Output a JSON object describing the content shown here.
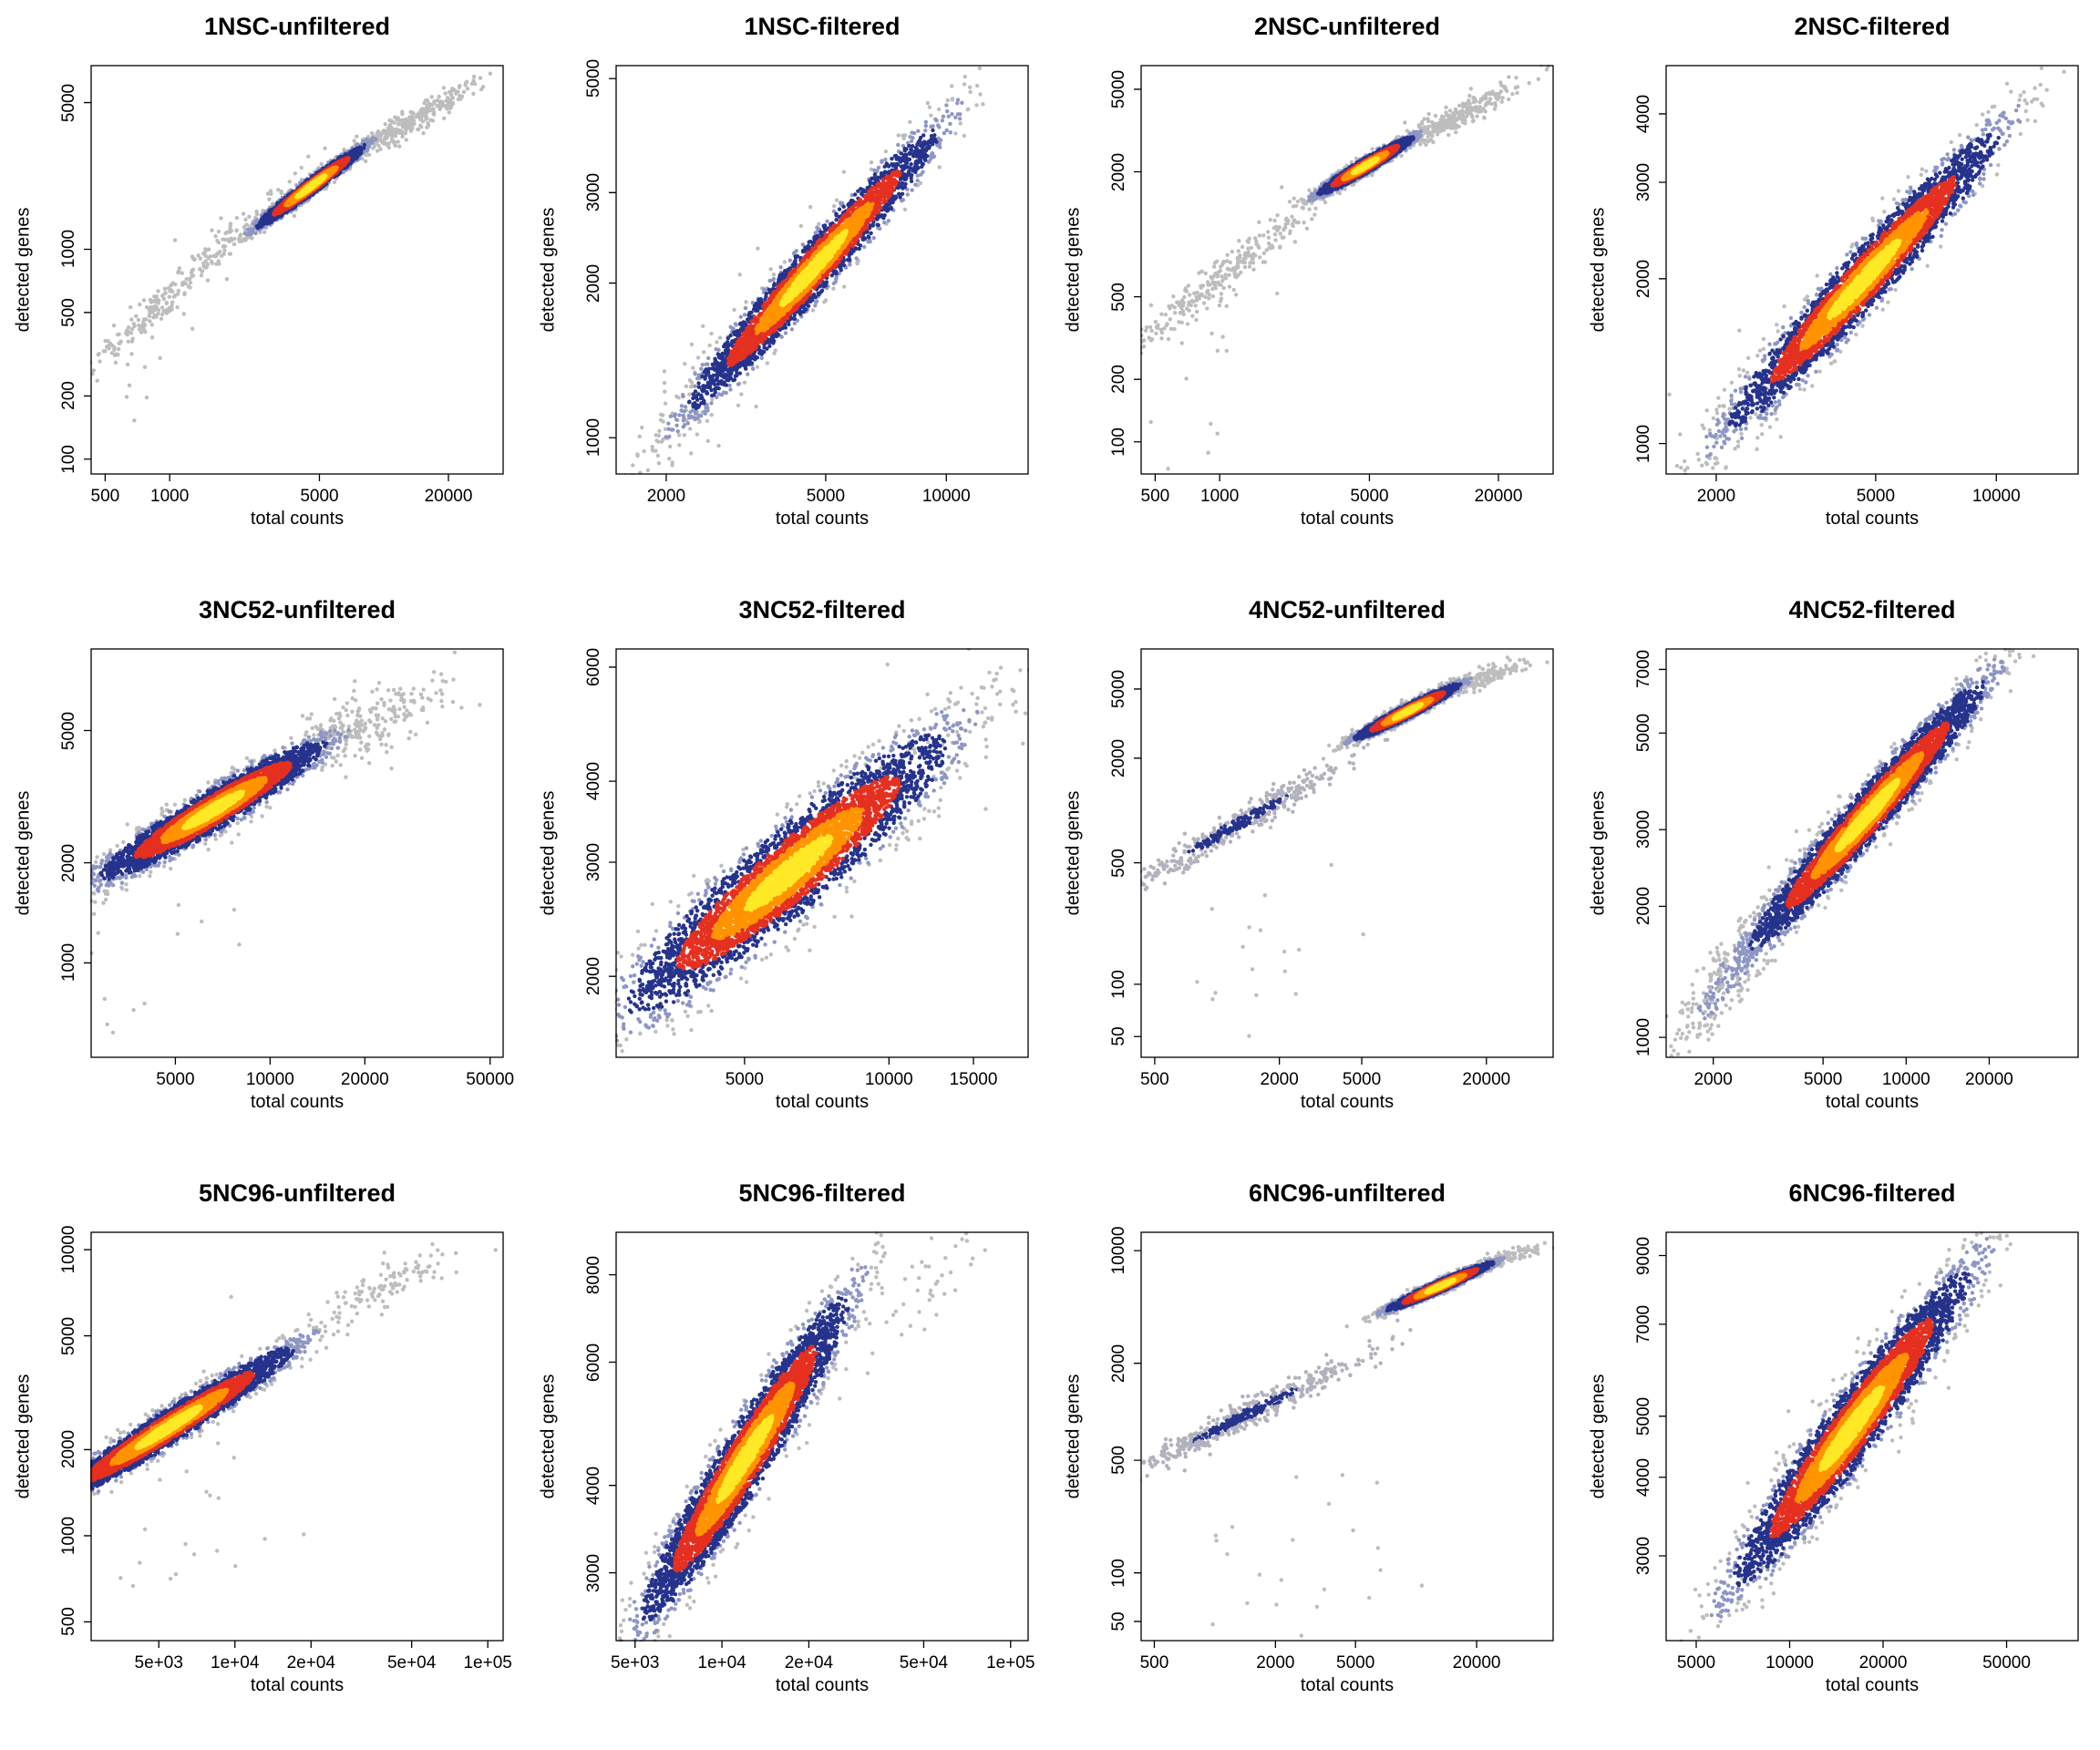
{
  "figure": {
    "rows": 3,
    "cols": 4,
    "background": "#FFFFFF"
  },
  "palette": {
    "yellow": "#FFE926",
    "orange": "#FF9400",
    "red": "#E53020",
    "navy": "#26338C",
    "slate": "#8E96C4",
    "gray": "#BDBDBD",
    "tail_gray": "#B2B2BE",
    "axis": "#000000"
  },
  "chart_data": [
    {
      "type": "scatter",
      "title": "1NSC-unfiltered",
      "xlabel": "total counts",
      "ylabel": "detected genes",
      "xscale": "log",
      "yscale": "log",
      "xlim": [
        430,
        36000
      ],
      "ylim": [
        85,
        7500
      ],
      "seed": 11,
      "xtick_values": [
        500,
        1000,
        5000,
        20000
      ],
      "xtick_labels": [
        "500",
        "1000",
        "5000",
        "20000"
      ],
      "ytick_values": [
        100,
        200,
        500,
        1000,
        5000
      ],
      "ytick_labels": [
        "100",
        "200",
        "500",
        "1000",
        "5000"
      ],
      "clouds": [
        {
          "n": 260,
          "cx": 3.05,
          "cy": 2.83,
          "sx": 0.24,
          "slope": 0.95,
          "sy": 0.05,
          "palette": "gray"
        },
        {
          "n": 300,
          "cx": 4.13,
          "cy": 3.61,
          "sx": 0.16,
          "slope": 0.58,
          "sy": 0.03,
          "palette": "gray"
        },
        {
          "n": 14,
          "cx": 2.85,
          "cy": 2.35,
          "sx": 0.12,
          "slope": 1.3,
          "sy": 0.22,
          "palette": "gray"
        },
        {
          "n": 3200,
          "cx": 3.66,
          "cy": 3.3,
          "sx": 0.115,
          "slope": 0.75,
          "sy": 0.02,
          "palette": "density"
        }
      ]
    },
    {
      "type": "scatter",
      "title": "1NSC-filtered",
      "xlabel": "total counts",
      "ylabel": "detected genes",
      "xscale": "log",
      "yscale": "log",
      "xlim": [
        1500,
        16000
      ],
      "ylim": [
        850,
        5300
      ],
      "seed": 22,
      "xtick_values": [
        2000,
        5000,
        10000
      ],
      "xtick_labels": [
        "2000",
        "5000",
        "10000"
      ],
      "ytick_values": [
        1000,
        2000,
        3000,
        5000
      ],
      "ytick_labels": [
        "1000",
        "2000",
        "3000",
        "5000"
      ],
      "clouds": [
        {
          "n": 70,
          "cx": 3.36,
          "cy": 3.07,
          "sx": 0.12,
          "slope": 0.95,
          "sy": 0.07,
          "palette": "gray"
        },
        {
          "n": 4200,
          "cx": 3.67,
          "cy": 3.33,
          "sx": 0.14,
          "slope": 0.85,
          "sy": 0.028,
          "palette": "density"
        }
      ]
    },
    {
      "type": "scatter",
      "title": "2NSC-unfiltered",
      "xlabel": "total counts",
      "ylabel": "detected genes",
      "xscale": "log",
      "yscale": "log",
      "xlim": [
        430,
        36000
      ],
      "ylim": [
        70,
        6500
      ],
      "seed": 33,
      "xtick_values": [
        500,
        1000,
        5000,
        20000
      ],
      "xtick_labels": [
        "500",
        "1000",
        "5000",
        "20000"
      ],
      "ytick_values": [
        100,
        200,
        500,
        2000,
        5000
      ],
      "ytick_labels": [
        "100",
        "200",
        "500",
        "2000",
        "5000"
      ],
      "clouds": [
        {
          "n": 280,
          "cx": 3.02,
          "cy": 2.8,
          "sx": 0.24,
          "slope": 0.82,
          "sy": 0.05,
          "palette": "gray"
        },
        {
          "n": 280,
          "cx": 4.1,
          "cy": 3.56,
          "sx": 0.15,
          "slope": 0.52,
          "sy": 0.03,
          "palette": "gray"
        },
        {
          "n": 16,
          "cx": 2.95,
          "cy": 2.4,
          "sx": 0.17,
          "slope": 0.9,
          "sy": 0.3,
          "palette": "gray"
        },
        {
          "n": 3000,
          "cx": 3.68,
          "cy": 3.33,
          "sx": 0.1,
          "slope": 0.6,
          "sy": 0.018,
          "palette": "density"
        }
      ]
    },
    {
      "type": "scatter",
      "title": "2NSC-filtered",
      "xlabel": "total counts",
      "ylabel": "detected genes",
      "xscale": "log",
      "yscale": "log",
      "xlim": [
        1500,
        16000
      ],
      "ylim": [
        880,
        4900
      ],
      "seed": 44,
      "xtick_values": [
        2000,
        5000,
        10000
      ],
      "xtick_labels": [
        "2000",
        "5000",
        "10000"
      ],
      "ytick_values": [
        1000,
        2000,
        3000,
        4000
      ],
      "ytick_labels": [
        "1000",
        "2000",
        "3000",
        "4000"
      ],
      "clouds": [
        {
          "n": 70,
          "cx": 3.35,
          "cy": 3.05,
          "sx": 0.12,
          "slope": 0.85,
          "sy": 0.06,
          "palette": "gray"
        },
        {
          "n": 4500,
          "cx": 3.67,
          "cy": 3.3,
          "sx": 0.15,
          "slope": 0.78,
          "sy": 0.03,
          "palette": "density"
        }
      ]
    },
    {
      "type": "scatter",
      "title": "3NC52-unfiltered",
      "xlabel": "total counts",
      "ylabel": "detected genes",
      "xscale": "log",
      "yscale": "log",
      "xlim": [
        2700,
        55000
      ],
      "ylim": [
        520,
        8800
      ],
      "seed": 55,
      "xtick_values": [
        5000,
        10000,
        20000,
        50000
      ],
      "xtick_labels": [
        "5000",
        "10000",
        "20000",
        "50000"
      ],
      "ytick_values": [
        1000,
        2000,
        5000
      ],
      "ytick_labels": [
        "1000",
        "2000",
        "5000"
      ],
      "clouds": [
        {
          "n": 220,
          "cx": 4.3,
          "cy": 3.71,
          "sx": 0.13,
          "slope": 0.38,
          "sy": 0.05,
          "palette": "gray"
        },
        {
          "n": 22,
          "cx": 3.62,
          "cy": 3.05,
          "sx": 0.18,
          "slope": 0.5,
          "sy": 0.22,
          "palette": "gray"
        },
        {
          "n": 4500,
          "cx": 3.82,
          "cy": 3.46,
          "sx": 0.16,
          "slope": 0.55,
          "sy": 0.03,
          "palette": "density"
        }
      ]
    },
    {
      "type": "scatter",
      "title": "3NC52-filtered",
      "xlabel": "total counts",
      "ylabel": "detected genes",
      "xscale": "log",
      "yscale": "log",
      "xlim": [
        2700,
        19500
      ],
      "ylim": [
        1500,
        6400
      ],
      "seed": 66,
      "xtick_values": [
        5000,
        10000,
        15000
      ],
      "xtick_labels": [
        "5000",
        "10000",
        "15000"
      ],
      "ytick_values": [
        2000,
        3000,
        4000,
        6000
      ],
      "ytick_labels": [
        "2000",
        "3000",
        "4000",
        "6000"
      ],
      "clouds": [
        {
          "n": 90,
          "cx": 4.08,
          "cy": 3.64,
          "sx": 0.1,
          "slope": 0.5,
          "sy": 0.06,
          "palette": "gray"
        },
        {
          "n": 5000,
          "cx": 3.79,
          "cy": 3.46,
          "sx": 0.15,
          "slope": 0.6,
          "sy": 0.035,
          "palette": "density"
        }
      ]
    },
    {
      "type": "scatter",
      "title": "4NC52-unfiltered",
      "xlabel": "total counts",
      "ylabel": "detected genes",
      "xscale": "log",
      "yscale": "log",
      "xlim": [
        430,
        42000
      ],
      "ylim": [
        38,
        8500
      ],
      "seed": 77,
      "xtick_values": [
        500,
        2000,
        5000,
        20000
      ],
      "xtick_labels": [
        "500",
        "2000",
        "5000",
        "20000"
      ],
      "ytick_values": [
        50,
        100,
        500,
        2000,
        5000
      ],
      "ytick_labels": [
        "50",
        "100",
        "500",
        "2000",
        "5000"
      ],
      "clouds": [
        {
          "n": 420,
          "cx": 3.1,
          "cy": 2.92,
          "sx": 0.27,
          "slope": 0.68,
          "sy": 0.04,
          "palette": "bluegray"
        },
        {
          "n": 130,
          "cx": 4.3,
          "cy": 3.77,
          "sx": 0.11,
          "slope": 0.42,
          "sy": 0.03,
          "palette": "gray"
        },
        {
          "n": 20,
          "cx": 3.2,
          "cy": 2.05,
          "sx": 0.28,
          "slope": 0.35,
          "sy": 0.35,
          "palette": "gray"
        },
        {
          "n": 3200,
          "cx": 3.92,
          "cy": 3.57,
          "sx": 0.115,
          "slope": 0.6,
          "sy": 0.02,
          "palette": "density"
        }
      ]
    },
    {
      "type": "scatter",
      "title": "4NC52-filtered",
      "xlabel": "total counts",
      "ylabel": "detected genes",
      "xscale": "log",
      "yscale": "log",
      "xlim": [
        1350,
        42000
      ],
      "ylim": [
        900,
        7800
      ],
      "seed": 88,
      "xtick_values": [
        2000,
        5000,
        10000,
        20000
      ],
      "xtick_labels": [
        "2000",
        "5000",
        "10000",
        "20000"
      ],
      "ytick_values": [
        1000,
        2000,
        3000,
        5000,
        7000
      ],
      "ytick_labels": [
        "1000",
        "2000",
        "3000",
        "5000",
        "7000"
      ],
      "clouds": [
        {
          "n": 320,
          "cx": 3.38,
          "cy": 3.16,
          "sx": 0.14,
          "slope": 0.78,
          "sy": 0.05,
          "palette": "grayblue"
        },
        {
          "n": 5000,
          "cx": 3.86,
          "cy": 3.51,
          "sx": 0.19,
          "slope": 0.7,
          "sy": 0.032,
          "palette": "density"
        }
      ]
    },
    {
      "type": "scatter",
      "title": "5NC96-unfiltered",
      "xlabel": "total counts",
      "ylabel": "detected genes",
      "xscale": "log",
      "yscale": "log",
      "xlim": [
        2700,
        115000
      ],
      "ylim": [
        430,
        11500
      ],
      "seed": 99,
      "xtick_values": [
        5000,
        10000,
        20000,
        50000,
        100000
      ],
      "xtick_labels": [
        "5e+03",
        "1e+04",
        "2e+04",
        "5e+04",
        "1e+05"
      ],
      "ytick_values": [
        500,
        1000,
        2000,
        5000,
        10000
      ],
      "ytick_labels": [
        "500",
        "1000",
        "2000",
        "5000",
        "10000"
      ],
      "clouds": [
        {
          "n": 100,
          "cx": 4.62,
          "cy": 3.88,
          "sx": 0.14,
          "slope": 0.38,
          "sy": 0.035,
          "palette": "gray"
        },
        {
          "n": 28,
          "cx": 3.7,
          "cy": 3.0,
          "sx": 0.25,
          "slope": 0.4,
          "sy": 0.22,
          "palette": "gray"
        },
        {
          "n": 5000,
          "cx": 3.74,
          "cy": 3.38,
          "sx": 0.22,
          "slope": 0.55,
          "sy": 0.03,
          "palette": "density"
        }
      ]
    },
    {
      "type": "scatter",
      "title": "5NC96-filtered",
      "xlabel": "total counts",
      "ylabel": "detected genes",
      "xscale": "log",
      "yscale": "log",
      "xlim": [
        4300,
        115000
      ],
      "ylim": [
        2400,
        9200
      ],
      "seed": 110,
      "xtick_values": [
        5000,
        10000,
        20000,
        50000,
        100000
      ],
      "xtick_labels": [
        "5e+03",
        "1e+04",
        "2e+04",
        "5e+04",
        "1e+05"
      ],
      "ytick_values": [
        3000,
        4000,
        6000,
        8000
      ],
      "ytick_labels": [
        "3000",
        "4000",
        "6000",
        "8000"
      ],
      "clouds": [
        {
          "n": 45,
          "cx": 4.72,
          "cy": 3.9,
          "sx": 0.13,
          "slope": 0.35,
          "sy": 0.035,
          "palette": "gray"
        },
        {
          "n": 5000,
          "cx": 4.08,
          "cy": 3.64,
          "sx": 0.16,
          "slope": 0.62,
          "sy": 0.03,
          "palette": "density"
        }
      ]
    },
    {
      "type": "scatter",
      "title": "6NC96-unfiltered",
      "xlabel": "total counts",
      "ylabel": "detected genes",
      "xscale": "log",
      "yscale": "log",
      "xlim": [
        430,
        48000
      ],
      "ylim": [
        38,
        13000
      ],
      "seed": 121,
      "xtick_values": [
        500,
        2000,
        5000,
        20000
      ],
      "xtick_labels": [
        "500",
        "2000",
        "5000",
        "20000"
      ],
      "ytick_values": [
        50,
        100,
        500,
        2000,
        10000
      ],
      "ytick_labels": [
        "50",
        "100",
        "500",
        "2000",
        "10000"
      ],
      "clouds": [
        {
          "n": 500,
          "cx": 3.15,
          "cy": 2.98,
          "sx": 0.29,
          "slope": 0.62,
          "sy": 0.04,
          "palette": "bluegray"
        },
        {
          "n": 90,
          "cx": 4.47,
          "cy": 3.96,
          "sx": 0.09,
          "slope": 0.38,
          "sy": 0.02,
          "palette": "gray"
        },
        {
          "n": 22,
          "cx": 3.3,
          "cy": 2.15,
          "sx": 0.28,
          "slope": 0.45,
          "sy": 0.38,
          "palette": "gray"
        },
        {
          "n": 3500,
          "cx": 4.12,
          "cy": 3.78,
          "sx": 0.12,
          "slope": 0.55,
          "sy": 0.018,
          "palette": "density"
        }
      ]
    },
    {
      "type": "scatter",
      "title": "6NC96-filtered",
      "xlabel": "total counts",
      "ylabel": "detected genes",
      "xscale": "log",
      "yscale": "log",
      "xlim": [
        4000,
        85000
      ],
      "ylim": [
        2200,
        9800
      ],
      "seed": 132,
      "xtick_values": [
        5000,
        10000,
        20000,
        50000
      ],
      "xtick_labels": [
        "5000",
        "10000",
        "20000",
        "50000"
      ],
      "ytick_values": [
        3000,
        4000,
        5000,
        7000,
        9000
      ],
      "ytick_labels": [
        "3000",
        "4000",
        "5000",
        "7000",
        "9000"
      ],
      "clouds": [
        {
          "n": 120,
          "cx": 4.2,
          "cy": 3.68,
          "sx": 0.24,
          "slope": 0.63,
          "sy": 0.075,
          "palette": "gray"
        },
        {
          "n": 5000,
          "cx": 4.2,
          "cy": 3.68,
          "sx": 0.17,
          "slope": 0.63,
          "sy": 0.032,
          "palette": "density"
        }
      ]
    }
  ]
}
